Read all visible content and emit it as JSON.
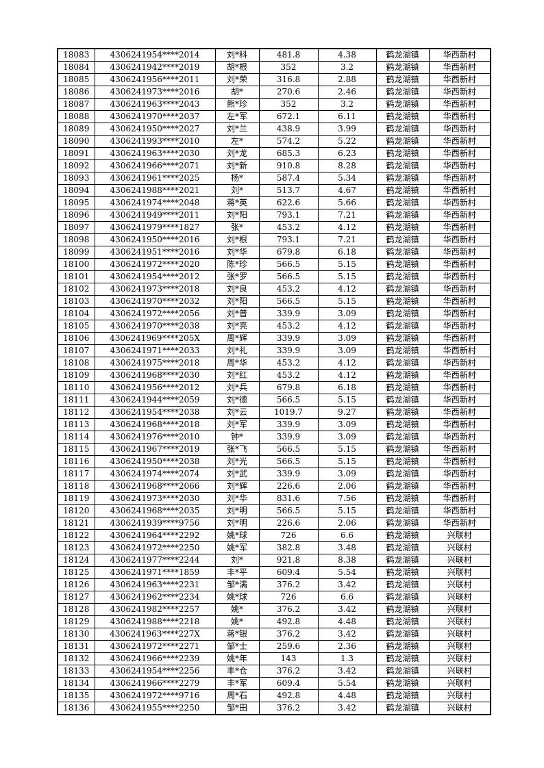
{
  "colors": {
    "page_background": "#ffffff",
    "table_border": "#000000",
    "text": "#000000"
  },
  "table": {
    "rows": [
      [
        "18083",
        "4306241954****2014",
        "刘*科",
        "481.8",
        "4.38",
        "鹤龙湖镇",
        "华西新村"
      ],
      [
        "18084",
        "4306241942****2019",
        "胡*根",
        "352",
        "3.2",
        "鹤龙湖镇",
        "华西新村"
      ],
      [
        "18085",
        "4306241956****2011",
        "刘*荣",
        "316.8",
        "2.88",
        "鹤龙湖镇",
        "华西新村"
      ],
      [
        "18086",
        "4306241973****2016",
        "胡*",
        "270.6",
        "2.46",
        "鹤龙湖镇",
        "华西新村"
      ],
      [
        "18087",
        "4306241963****2043",
        "熊*珍",
        "352",
        "3.2",
        "鹤龙湖镇",
        "华西新村"
      ],
      [
        "18088",
        "4306241970****2037",
        "左*军",
        "672.1",
        "6.11",
        "鹤龙湖镇",
        "华西新村"
      ],
      [
        "18089",
        "4306241950****2027",
        "刘*兰",
        "438.9",
        "3.99",
        "鹤龙湖镇",
        "华西新村"
      ],
      [
        "18090",
        "4306241993****2010",
        "左*",
        "574.2",
        "5.22",
        "鹤龙湖镇",
        "华西新村"
      ],
      [
        "18091",
        "4306241963****2030",
        "刘*龙",
        "685.3",
        "6.23",
        "鹤龙湖镇",
        "华西新村"
      ],
      [
        "18092",
        "4306241966****2071",
        "刘*新",
        "910.8",
        "8.28",
        "鹤龙湖镇",
        "华西新村"
      ],
      [
        "18093",
        "4306241961****2025",
        "杨*",
        "587.4",
        "5.34",
        "鹤龙湖镇",
        "华西新村"
      ],
      [
        "18094",
        "4306241988****2021",
        "刘*",
        "513.7",
        "4.67",
        "鹤龙湖镇",
        "华西新村"
      ],
      [
        "18095",
        "4306241974****2048",
        "蒋*英",
        "622.6",
        "5.66",
        "鹤龙湖镇",
        "华西新村"
      ],
      [
        "18096",
        "4306241949****2011",
        "刘*阳",
        "793.1",
        "7.21",
        "鹤龙湖镇",
        "华西新村"
      ],
      [
        "18097",
        "4306241979****1827",
        "张*",
        "453.2",
        "4.12",
        "鹤龙湖镇",
        "华西新村"
      ],
      [
        "18098",
        "4306241950****2016",
        "刘*根",
        "793.1",
        "7.21",
        "鹤龙湖镇",
        "华西新村"
      ],
      [
        "18099",
        "4306241951****2016",
        "刘*华",
        "679.8",
        "6.18",
        "鹤龙湖镇",
        "华西新村"
      ],
      [
        "18100",
        "4306241972****2020",
        "陈*珍",
        "566.5",
        "5.15",
        "鹤龙湖镇",
        "华西新村"
      ],
      [
        "18101",
        "4306241954****2012",
        "张*罗",
        "566.5",
        "5.15",
        "鹤龙湖镇",
        "华西新村"
      ],
      [
        "18102",
        "4306241973****2018",
        "刘*良",
        "453.2",
        "4.12",
        "鹤龙湖镇",
        "华西新村"
      ],
      [
        "18103",
        "4306241970****2032",
        "刘*阳",
        "566.5",
        "5.15",
        "鹤龙湖镇",
        "华西新村"
      ],
      [
        "18104",
        "4306241972****2056",
        "刘*普",
        "339.9",
        "3.09",
        "鹤龙湖镇",
        "华西新村"
      ],
      [
        "18105",
        "4306241970****2038",
        "刘*亮",
        "453.2",
        "4.12",
        "鹤龙湖镇",
        "华西新村"
      ],
      [
        "18106",
        "4306241969****205X",
        "周*辉",
        "339.9",
        "3.09",
        "鹤龙湖镇",
        "华西新村"
      ],
      [
        "18107",
        "4306241971****2033",
        "刘*礼",
        "339.9",
        "3.09",
        "鹤龙湖镇",
        "华西新村"
      ],
      [
        "18108",
        "4306241975****2018",
        "周*华",
        "453.2",
        "4.12",
        "鹤龙湖镇",
        "华西新村"
      ],
      [
        "18109",
        "4306241968****2030",
        "刘*红",
        "453.2",
        "4.12",
        "鹤龙湖镇",
        "华西新村"
      ],
      [
        "18110",
        "4306241956****2012",
        "刘*兵",
        "679.8",
        "6.18",
        "鹤龙湖镇",
        "华西新村"
      ],
      [
        "18111",
        "4306241944****2059",
        "刘*德",
        "566.5",
        "5.15",
        "鹤龙湖镇",
        "华西新村"
      ],
      [
        "18112",
        "4306241954****2038",
        "刘*云",
        "1019.7",
        "9.27",
        "鹤龙湖镇",
        "华西新村"
      ],
      [
        "18113",
        "4306241968****2018",
        "刘*军",
        "339.9",
        "3.09",
        "鹤龙湖镇",
        "华西新村"
      ],
      [
        "18114",
        "4306241976****2010",
        "钟*",
        "339.9",
        "3.09",
        "鹤龙湖镇",
        "华西新村"
      ],
      [
        "18115",
        "4306241967****2019",
        "张*飞",
        "566.5",
        "5.15",
        "鹤龙湖镇",
        "华西新村"
      ],
      [
        "18116",
        "4306241950****2038",
        "刘*光",
        "566.5",
        "5.15",
        "鹤龙湖镇",
        "华西新村"
      ],
      [
        "18117",
        "4306241974****2074",
        "刘*武",
        "339.9",
        "3.09",
        "鹤龙湖镇",
        "华西新村"
      ],
      [
        "18118",
        "4306241968****2066",
        "刘*辉",
        "226.6",
        "2.06",
        "鹤龙湖镇",
        "华西新村"
      ],
      [
        "18119",
        "4306241973****2030",
        "刘*华",
        "831.6",
        "7.56",
        "鹤龙湖镇",
        "华西新村"
      ],
      [
        "18120",
        "4306241968****2035",
        "刘*明",
        "566.5",
        "5.15",
        "鹤龙湖镇",
        "华西新村"
      ],
      [
        "18121",
        "4306241939****9756",
        "刘*明",
        "226.6",
        "2.06",
        "鹤龙湖镇",
        "华西新村"
      ],
      [
        "18122",
        "4306241964****2292",
        "姚*球",
        "726",
        "6.6",
        "鹤龙湖镇",
        "兴联村"
      ],
      [
        "18123",
        "4306241972****2250",
        "姚*军",
        "382.8",
        "3.48",
        "鹤龙湖镇",
        "兴联村"
      ],
      [
        "18124",
        "4306241977****2244",
        "刘*",
        "921.8",
        "8.38",
        "鹤龙湖镇",
        "兴联村"
      ],
      [
        "18125",
        "4306241971****1859",
        "丰*平",
        "609.4",
        "5.54",
        "鹤龙湖镇",
        "兴联村"
      ],
      [
        "18126",
        "4306241963****2231",
        "邹*满",
        "376.2",
        "3.42",
        "鹤龙湖镇",
        "兴联村"
      ],
      [
        "18127",
        "4306241962****2234",
        "姚*球",
        "726",
        "6.6",
        "鹤龙湖镇",
        "兴联村"
      ],
      [
        "18128",
        "4306241982****2257",
        "姚*",
        "376.2",
        "3.42",
        "鹤龙湖镇",
        "兴联村"
      ],
      [
        "18129",
        "4306241988****2218",
        "姚*",
        "492.8",
        "4.48",
        "鹤龙湖镇",
        "兴联村"
      ],
      [
        "18130",
        "4306241963****227X",
        "蒋*银",
        "376.2",
        "3.42",
        "鹤龙湖镇",
        "兴联村"
      ],
      [
        "18131",
        "4306241972****2271",
        "邹*士",
        "259.6",
        "2.36",
        "鹤龙湖镇",
        "兴联村"
      ],
      [
        "18132",
        "4306241966****2239",
        "姚*年",
        "143",
        "1.3",
        "鹤龙湖镇",
        "兴联村"
      ],
      [
        "18133",
        "4306241954****2256",
        "丰*仓",
        "376.2",
        "3.42",
        "鹤龙湖镇",
        "兴联村"
      ],
      [
        "18134",
        "4306241966****2279",
        "丰*军",
        "609.4",
        "5.54",
        "鹤龙湖镇",
        "兴联村"
      ],
      [
        "18135",
        "4306241972****9716",
        "周*石",
        "492.8",
        "4.48",
        "鹤龙湖镇",
        "兴联村"
      ],
      [
        "18136",
        "4306241955****2250",
        "邹*田",
        "376.2",
        "3.42",
        "鹤龙湖镇",
        "兴联村"
      ]
    ]
  }
}
